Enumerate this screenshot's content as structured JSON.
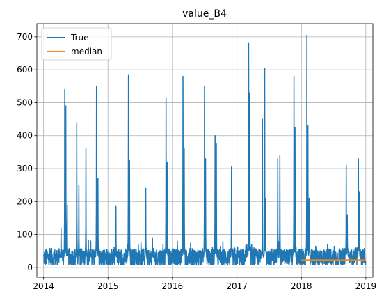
{
  "chart_data": {
    "type": "line",
    "title": "value_B4",
    "xlabel": "",
    "ylabel": "",
    "xlim": [
      "2013-11-24",
      "2019-02-10"
    ],
    "ylim": [
      -30,
      740
    ],
    "x_ticks": [
      "2014",
      "2015",
      "2016",
      "2017",
      "2018",
      "2019"
    ],
    "y_ticks": [
      0,
      100,
      200,
      300,
      400,
      500,
      600,
      700
    ],
    "grid": true,
    "legend": {
      "position": "top-left",
      "entries": [
        "True",
        "median"
      ]
    },
    "series": [
      {
        "name": "True",
        "color": "#1f77b4",
        "baseline": {
          "start": "2014-01-01",
          "end": "2018-12-31",
          "level": 30,
          "range": [
            10,
            60
          ]
        },
        "peaks": [
          {
            "date": "2014-04-10",
            "value": 120
          },
          {
            "date": "2014-05-01",
            "value": 540
          },
          {
            "date": "2014-05-07",
            "value": 490
          },
          {
            "date": "2014-05-15",
            "value": 190
          },
          {
            "date": "2014-07-08",
            "value": 440
          },
          {
            "date": "2014-07-20",
            "value": 250
          },
          {
            "date": "2014-08-29",
            "value": 360
          },
          {
            "date": "2014-09-25",
            "value": 80
          },
          {
            "date": "2014-10-28",
            "value": 550
          },
          {
            "date": "2014-11-05",
            "value": 270
          },
          {
            "date": "2015-02-15",
            "value": 185
          },
          {
            "date": "2015-04-27",
            "value": 585
          },
          {
            "date": "2015-05-03",
            "value": 325
          },
          {
            "date": "2015-08-03",
            "value": 240
          },
          {
            "date": "2015-09-10",
            "value": 90
          },
          {
            "date": "2015-11-26",
            "value": 515
          },
          {
            "date": "2015-12-02",
            "value": 320
          },
          {
            "date": "2016-03-01",
            "value": 580
          },
          {
            "date": "2016-03-08",
            "value": 360
          },
          {
            "date": "2016-07-01",
            "value": 550
          },
          {
            "date": "2016-07-07",
            "value": 330
          },
          {
            "date": "2016-08-30",
            "value": 400
          },
          {
            "date": "2016-09-06",
            "value": 375
          },
          {
            "date": "2016-12-01",
            "value": 305
          },
          {
            "date": "2017-03-08",
            "value": 680
          },
          {
            "date": "2017-03-14",
            "value": 530
          },
          {
            "date": "2017-05-25",
            "value": 450
          },
          {
            "date": "2017-06-07",
            "value": 605
          },
          {
            "date": "2017-06-12",
            "value": 210
          },
          {
            "date": "2017-08-20",
            "value": 330
          },
          {
            "date": "2017-09-01",
            "value": 340
          },
          {
            "date": "2017-11-20",
            "value": 580
          },
          {
            "date": "2017-11-26",
            "value": 425
          },
          {
            "date": "2018-02-01",
            "value": 705
          },
          {
            "date": "2018-02-07",
            "value": 430
          },
          {
            "date": "2018-02-14",
            "value": 210
          },
          {
            "date": "2018-09-12",
            "value": 310
          },
          {
            "date": "2018-09-18",
            "value": 160
          },
          {
            "date": "2018-11-20",
            "value": 330
          },
          {
            "date": "2018-11-25",
            "value": 230
          }
        ]
      },
      {
        "name": "median",
        "color": "#ff7f0e",
        "x": [
          "2018-01-01",
          "2018-12-31"
        ],
        "values": [
          22,
          22
        ]
      }
    ]
  }
}
